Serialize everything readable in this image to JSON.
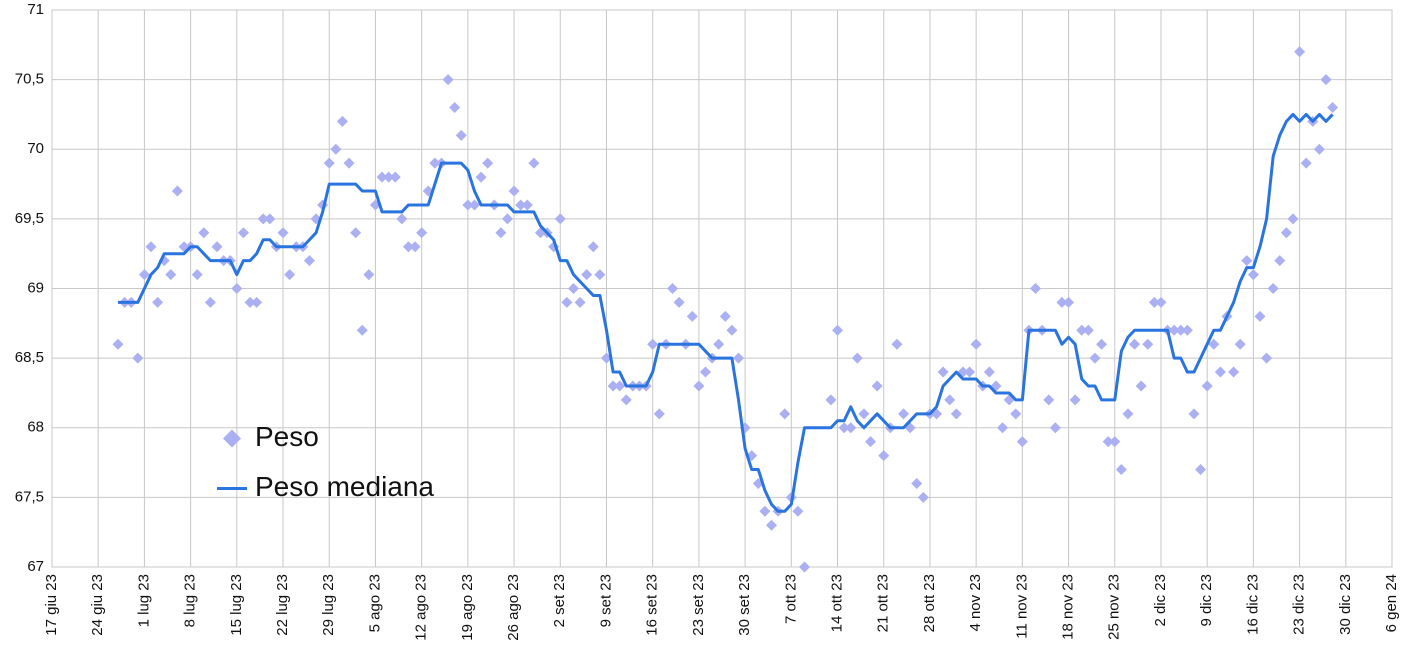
{
  "chart_data": {
    "type": "scatter-line",
    "x": [
      "2023-06-27",
      "2023-06-28",
      "2023-06-29",
      "2023-06-30",
      "2023-07-01",
      "2023-07-02",
      "2023-07-03",
      "2023-07-04",
      "2023-07-05",
      "2023-07-06",
      "2023-07-07",
      "2023-07-08",
      "2023-07-09",
      "2023-07-10",
      "2023-07-11",
      "2023-07-12",
      "2023-07-13",
      "2023-07-14",
      "2023-07-15",
      "2023-07-16",
      "2023-07-17",
      "2023-07-18",
      "2023-07-19",
      "2023-07-20",
      "2023-07-21",
      "2023-07-22",
      "2023-07-23",
      "2023-07-24",
      "2023-07-25",
      "2023-07-26",
      "2023-07-27",
      "2023-07-28",
      "2023-07-29",
      "2023-07-30",
      "2023-07-31",
      "2023-08-01",
      "2023-08-02",
      "2023-08-03",
      "2023-08-04",
      "2023-08-05",
      "2023-08-06",
      "2023-08-07",
      "2023-08-08",
      "2023-08-09",
      "2023-08-10",
      "2023-08-11",
      "2023-08-12",
      "2023-08-13",
      "2023-08-14",
      "2023-08-15",
      "2023-08-16",
      "2023-08-17",
      "2023-08-18",
      "2023-08-19",
      "2023-08-20",
      "2023-08-21",
      "2023-08-22",
      "2023-08-23",
      "2023-08-24",
      "2023-08-25",
      "2023-08-26",
      "2023-08-27",
      "2023-08-28",
      "2023-08-29",
      "2023-08-30",
      "2023-08-31",
      "2023-09-01",
      "2023-09-02",
      "2023-09-03",
      "2023-09-04",
      "2023-09-05",
      "2023-09-06",
      "2023-09-07",
      "2023-09-08",
      "2023-09-09",
      "2023-09-10",
      "2023-09-11",
      "2023-09-12",
      "2023-09-13",
      "2023-09-14",
      "2023-09-15",
      "2023-09-16",
      "2023-09-17",
      "2023-09-18",
      "2023-09-19",
      "2023-09-20",
      "2023-09-21",
      "2023-09-22",
      "2023-09-23",
      "2023-09-24",
      "2023-09-25",
      "2023-09-26",
      "2023-09-27",
      "2023-09-28",
      "2023-09-29",
      "2023-09-30",
      "2023-10-01",
      "2023-10-02",
      "2023-10-03",
      "2023-10-04",
      "2023-10-05",
      "2023-10-06",
      "2023-10-07",
      "2023-10-08",
      "2023-10-09",
      "2023-10-10",
      "2023-10-11",
      "2023-10-12",
      "2023-10-13",
      "2023-10-14",
      "2023-10-15",
      "2023-10-16",
      "2023-10-17",
      "2023-10-18",
      "2023-10-19",
      "2023-10-20",
      "2023-10-21",
      "2023-10-22",
      "2023-10-23",
      "2023-10-24",
      "2023-10-25",
      "2023-10-26",
      "2023-10-27",
      "2023-10-28",
      "2023-10-29",
      "2023-10-30",
      "2023-10-31",
      "2023-11-01",
      "2023-11-02",
      "2023-11-03",
      "2023-11-04",
      "2023-11-05",
      "2023-11-06",
      "2023-11-07",
      "2023-11-08",
      "2023-11-09",
      "2023-11-10",
      "2023-11-11",
      "2023-11-12",
      "2023-11-13",
      "2023-11-14",
      "2023-11-15",
      "2023-11-16",
      "2023-11-17",
      "2023-11-18",
      "2023-11-19",
      "2023-11-20",
      "2023-11-21",
      "2023-11-22",
      "2023-11-23",
      "2023-11-24",
      "2023-11-25",
      "2023-11-26",
      "2023-11-27",
      "2023-11-28",
      "2023-11-29",
      "2023-11-30",
      "2023-12-01",
      "2023-12-02",
      "2023-12-03",
      "2023-12-04",
      "2023-12-05",
      "2023-12-06",
      "2023-12-07",
      "2023-12-08",
      "2023-12-09",
      "2023-12-10",
      "2023-12-11",
      "2023-12-12",
      "2023-12-13",
      "2023-12-14",
      "2023-12-15",
      "2023-12-16",
      "2023-12-17",
      "2023-12-18",
      "2023-12-19",
      "2023-12-20",
      "2023-12-21",
      "2023-12-22",
      "2023-12-23",
      "2023-12-24",
      "2023-12-25",
      "2023-12-26",
      "2023-12-27",
      "2023-12-28"
    ],
    "series": [
      {
        "name": "Peso",
        "kind": "scatter",
        "color": "#abb0f2",
        "values": [
          68.6,
          68.9,
          68.9,
          68.5,
          69.1,
          69.3,
          68.9,
          69.2,
          69.1,
          69.7,
          69.3,
          69.3,
          69.1,
          69.4,
          68.9,
          69.3,
          69.2,
          69.2,
          69.0,
          69.4,
          68.9,
          68.9,
          69.5,
          69.5,
          69.3,
          69.4,
          69.1,
          69.3,
          69.3,
          69.2,
          69.5,
          69.6,
          69.9,
          70.0,
          70.2,
          69.9,
          69.4,
          68.7,
          69.1,
          69.6,
          69.8,
          69.8,
          69.8,
          69.5,
          69.3,
          69.3,
          69.4,
          69.7,
          69.9,
          69.9,
          70.5,
          70.3,
          70.1,
          69.6,
          69.6,
          69.8,
          69.9,
          69.6,
          69.4,
          69.5,
          69.7,
          69.6,
          69.6,
          69.9,
          69.4,
          69.4,
          69.3,
          69.5,
          68.9,
          69.0,
          68.9,
          69.1,
          69.3,
          69.1,
          68.5,
          68.3,
          68.3,
          68.2,
          68.3,
          68.3,
          68.3,
          68.6,
          68.1,
          68.6,
          69.0,
          68.9,
          68.6,
          68.8,
          68.3,
          68.4,
          68.5,
          68.6,
          68.8,
          68.7,
          68.5,
          68.0,
          67.8,
          67.6,
          67.4,
          67.3,
          67.4,
          68.1,
          67.5,
          67.4,
          67.0,
          null,
          null,
          null,
          68.2,
          68.7,
          68.0,
          68.0,
          68.5,
          68.1,
          67.9,
          68.3,
          67.8,
          68.0,
          68.6,
          68.1,
          68.0,
          67.6,
          67.5,
          68.1,
          68.1,
          68.4,
          68.2,
          68.1,
          68.4,
          68.4,
          68.6,
          68.3,
          68.4,
          68.3,
          68.0,
          68.2,
          68.1,
          67.9,
          68.7,
          69.0,
          68.7,
          68.2,
          68.0,
          68.9,
          68.9,
          68.2,
          68.7,
          68.7,
          68.5,
          68.6,
          67.9,
          67.9,
          67.7,
          68.1,
          68.6,
          68.3,
          68.6,
          68.9,
          68.9,
          68.7,
          68.7,
          68.7,
          68.7,
          68.1,
          67.7,
          68.3,
          68.6,
          68.4,
          68.8,
          68.4,
          68.6,
          69.2,
          69.1,
          68.8,
          68.5,
          69.0,
          69.2,
          69.4,
          69.5,
          70.7,
          69.9,
          70.2,
          70.0,
          70.5,
          70.3
        ]
      },
      {
        "name": "Peso mediana",
        "kind": "line",
        "color": "#2a74e0",
        "values": [
          68.9,
          68.9,
          68.9,
          68.9,
          69.0,
          69.1,
          69.15,
          69.25,
          69.25,
          69.25,
          69.25,
          69.3,
          69.3,
          69.25,
          69.2,
          69.2,
          69.2,
          69.2,
          69.1,
          69.2,
          69.2,
          69.25,
          69.35,
          69.35,
          69.3,
          69.3,
          69.3,
          69.3,
          69.3,
          69.35,
          69.4,
          69.55,
          69.75,
          69.75,
          69.75,
          69.75,
          69.75,
          69.7,
          69.7,
          69.7,
          69.55,
          69.55,
          69.55,
          69.55,
          69.6,
          69.6,
          69.6,
          69.6,
          69.75,
          69.9,
          69.9,
          69.9,
          69.9,
          69.85,
          69.7,
          69.6,
          69.6,
          69.6,
          69.6,
          69.6,
          69.55,
          69.55,
          69.55,
          69.55,
          69.45,
          69.4,
          69.35,
          69.2,
          69.2,
          69.1,
          69.05,
          69.0,
          68.95,
          68.95,
          68.7,
          68.4,
          68.4,
          68.3,
          68.3,
          68.3,
          68.3,
          68.4,
          68.6,
          68.6,
          68.6,
          68.6,
          68.6,
          68.6,
          68.6,
          68.55,
          68.5,
          68.5,
          68.5,
          68.5,
          68.2,
          67.85,
          67.7,
          67.7,
          67.55,
          67.45,
          67.4,
          67.4,
          67.45,
          67.75,
          68.0,
          68.0,
          68.0,
          68.0,
          68.0,
          68.05,
          68.05,
          68.15,
          68.05,
          68.0,
          68.05,
          68.1,
          68.05,
          68.0,
          68.0,
          68.0,
          68.05,
          68.1,
          68.1,
          68.1,
          68.15,
          68.3,
          68.35,
          68.4,
          68.35,
          68.35,
          68.35,
          68.3,
          68.3,
          68.25,
          68.25,
          68.25,
          68.2,
          68.2,
          68.7,
          68.7,
          68.7,
          68.7,
          68.7,
          68.6,
          68.65,
          68.6,
          68.35,
          68.3,
          68.3,
          68.2,
          68.2,
          68.2,
          68.55,
          68.65,
          68.7,
          68.7,
          68.7,
          68.7,
          68.7,
          68.7,
          68.5,
          68.5,
          68.4,
          68.4,
          68.5,
          68.6,
          68.7,
          68.7,
          68.8,
          68.9,
          69.05,
          69.15,
          69.15,
          69.3,
          69.5,
          69.95,
          70.1,
          70.2,
          70.25,
          70.2,
          70.25,
          70.2,
          70.25,
          70.2,
          70.25
        ]
      }
    ],
    "xlim": [
      "2023-06-17",
      "2024-01-06"
    ],
    "xticks": [
      {
        "value": "2023-06-17",
        "label": "17 giu 23"
      },
      {
        "value": "2023-06-24",
        "label": "24 giu 23"
      },
      {
        "value": "2023-07-01",
        "label": "1 lug 23"
      },
      {
        "value": "2023-07-08",
        "label": "8 lug 23"
      },
      {
        "value": "2023-07-15",
        "label": "15 lug 23"
      },
      {
        "value": "2023-07-22",
        "label": "22 lug 23"
      },
      {
        "value": "2023-07-29",
        "label": "29 lug 23"
      },
      {
        "value": "2023-08-05",
        "label": "5 ago 23"
      },
      {
        "value": "2023-08-12",
        "label": "12 ago 23"
      },
      {
        "value": "2023-08-19",
        "label": "19 ago 23"
      },
      {
        "value": "2023-08-26",
        "label": "26 ago 23"
      },
      {
        "value": "2023-09-02",
        "label": "2 set 23"
      },
      {
        "value": "2023-09-09",
        "label": "9 set 23"
      },
      {
        "value": "2023-09-16",
        "label": "16 set 23"
      },
      {
        "value": "2023-09-23",
        "label": "23 set 23"
      },
      {
        "value": "2023-09-30",
        "label": "30 set 23"
      },
      {
        "value": "2023-10-07",
        "label": "7 ott 23"
      },
      {
        "value": "2023-10-14",
        "label": "14 ott 23"
      },
      {
        "value": "2023-10-21",
        "label": "21 ott 23"
      },
      {
        "value": "2023-10-28",
        "label": "28 ott 23"
      },
      {
        "value": "2023-11-04",
        "label": "4 nov 23"
      },
      {
        "value": "2023-11-11",
        "label": "11 nov 23"
      },
      {
        "value": "2023-11-18",
        "label": "18 nov 23"
      },
      {
        "value": "2023-11-25",
        "label": "25 nov 23"
      },
      {
        "value": "2023-12-02",
        "label": "2 dic 23"
      },
      {
        "value": "2023-12-09",
        "label": "9 dic 23"
      },
      {
        "value": "2023-12-16",
        "label": "16 dic 23"
      },
      {
        "value": "2023-12-23",
        "label": "23 dic 23"
      },
      {
        "value": "2023-12-30",
        "label": "30 dic 23"
      },
      {
        "value": "2024-01-06",
        "label": "6 gen 24"
      }
    ],
    "ylim": [
      67,
      71
    ],
    "yticks": [
      67,
      {
        "value": 67.5,
        "label": "67,5"
      },
      68,
      {
        "value": 68.5,
        "label": "68,5"
      },
      69,
      {
        "value": 69.5,
        "label": "69,5"
      },
      70,
      {
        "value": 70.5,
        "label": "70,5"
      },
      71
    ],
    "grid": true,
    "legend": "center-left"
  }
}
